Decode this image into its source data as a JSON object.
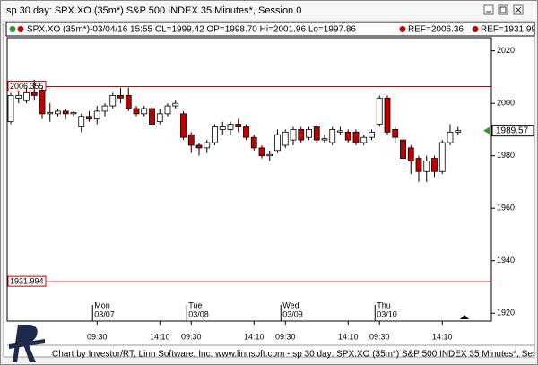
{
  "window_title": "sp 30 day: SPX.XO (35m*) S&P 500 INDEX 35 Minutes*, Session 0",
  "footer": "Chart by Investor/RT, Linn Software, Inc. www.linnsoft.com - sp 30 day: SPX.XO (35m*) S&P 500 INDEX 35 Minutes*, Session 0",
  "chart_data": {
    "type": "candlestick",
    "info_text": "SPX.XO (35m*)-03/04/16 15:55 CL=1999.42 OP=1998.70 Hi=2001.96 Lo=1997.86",
    "ref_labels": [
      "REF=2006.36",
      "REF=1931.99"
    ],
    "ref_lines": [
      2006.355,
      1931.994
    ],
    "ref_color": "#c00000",
    "last_price": 1989.57,
    "up_color": "#ffffff",
    "down_color": "#c00000",
    "ylim": [
      1917,
      2025
    ],
    "yticks": [
      1920,
      1940,
      1960,
      1980,
      2000,
      2020
    ],
    "categories": [
      null,
      null,
      null,
      null,
      null,
      null,
      null,
      null,
      null,
      null,
      null,
      "09:30",
      null,
      null,
      null,
      null,
      null,
      null,
      null,
      "14:10",
      null,
      null,
      null,
      "09:30",
      null,
      null,
      null,
      null,
      null,
      null,
      null,
      "14:10",
      null,
      null,
      null,
      "09:30",
      null,
      null,
      null,
      null,
      null,
      null,
      null,
      "14:10",
      null,
      null,
      null,
      "09:30",
      null,
      null,
      null,
      null,
      null,
      null,
      null,
      "14:10",
      null,
      null
    ],
    "day_labels": [
      null,
      null,
      null,
      null,
      null,
      null,
      null,
      null,
      null,
      null,
      null,
      "Mon",
      null,
      null,
      null,
      null,
      null,
      null,
      null,
      null,
      null,
      null,
      null,
      "Tue",
      null,
      null,
      null,
      null,
      null,
      null,
      null,
      null,
      null,
      null,
      null,
      "Wed",
      null,
      null,
      null,
      null,
      null,
      null,
      null,
      null,
      null,
      null,
      null,
      "Thu",
      null,
      null,
      null,
      null,
      null,
      null,
      null,
      null,
      null,
      null
    ],
    "date_labels": [
      null,
      null,
      null,
      null,
      null,
      null,
      null,
      null,
      null,
      null,
      null,
      "03/07",
      null,
      null,
      null,
      null,
      null,
      null,
      null,
      null,
      null,
      null,
      null,
      "03/08",
      null,
      null,
      null,
      null,
      null,
      null,
      null,
      null,
      null,
      null,
      null,
      "03/09",
      null,
      null,
      null,
      null,
      null,
      null,
      null,
      null,
      null,
      null,
      null,
      "03/10",
      null,
      null,
      null,
      null,
      null,
      null,
      null,
      null,
      null,
      null
    ],
    "open": [
      1993,
      2002,
      2001,
      2004,
      2005,
      1996,
      1996,
      1997,
      1996,
      1991,
      1995,
      1994,
      1997,
      1999,
      2003,
      2003,
      1998,
      1996,
      1998,
      1993,
      1996,
      1999,
      1996,
      1988,
      1984,
      1983,
      1985,
      1990,
      1990,
      1992,
      1991,
      1987,
      1983,
      1980,
      1982,
      1984,
      1986,
      1990,
      1987,
      1991,
      1986,
      1985,
      1989,
      1989,
      1989,
      1985,
      1987,
      1992,
      2002,
      1990,
      1986,
      1983,
      1979,
      1974,
      1979,
      1974,
      1985,
      1989
    ],
    "high": [
      2004,
      2005,
      2006,
      2009,
      2006,
      2000,
      1998,
      1998,
      1997,
      1996,
      1997,
      1999,
      2000,
      2004,
      2006,
      2006,
      1999,
      1999,
      1999,
      1998,
      2000,
      2001,
      1997,
      1989,
      1985,
      1986,
      1992,
      1993,
      1993,
      1994,
      1992,
      1988,
      1984,
      1982,
      1990,
      1990,
      1991,
      1991,
      1991,
      1992,
      1988,
      1991,
      1991,
      1990,
      1990,
      1988,
      1990,
      2003,
      2003,
      1991,
      1987,
      1984,
      1980,
      1980,
      1980,
      1986,
      1992,
      1991
    ],
    "low": [
      1992,
      2000,
      2000,
      2001,
      1994,
      1993,
      1995,
      1994,
      1995,
      1989,
      1993,
      1992,
      1995,
      1998,
      2000,
      1997,
      1995,
      1995,
      1991,
      1992,
      1995,
      1998,
      1986,
      1981,
      1980,
      1981,
      1984,
      1988,
      1988,
      1989,
      1986,
      1982,
      1979,
      1978,
      1981,
      1983,
      1984,
      1985,
      1986,
      1985,
      1985,
      1984,
      1988,
      1985,
      1984,
      1984,
      1986,
      1991,
      1988,
      1985,
      1976,
      1973,
      1970,
      1970,
      1972,
      1973,
      1984,
      1988
    ],
    "close": [
      2003,
      2003,
      2004,
      2003,
      1996,
      1996.5,
      1997,
      1996,
      1996.5,
      1995,
      1994,
      1997,
      1999,
      2003,
      2002,
      1998,
      1996,
      1998,
      1992,
      1996,
      1999,
      2000,
      1987,
      1984,
      1983,
      1985,
      1991,
      1991,
      1992,
      1991,
      1987,
      1983,
      1980,
      1980.5,
      1988,
      1989,
      1990,
      1986,
      1990,
      1986,
      1986.5,
      1990,
      1989.5,
      1986,
      1985,
      1987,
      1989,
      2002,
      1989,
      1987,
      1979,
      1978,
      1974,
      1978,
      1974,
      1985,
      1989,
      1989.57
    ]
  }
}
